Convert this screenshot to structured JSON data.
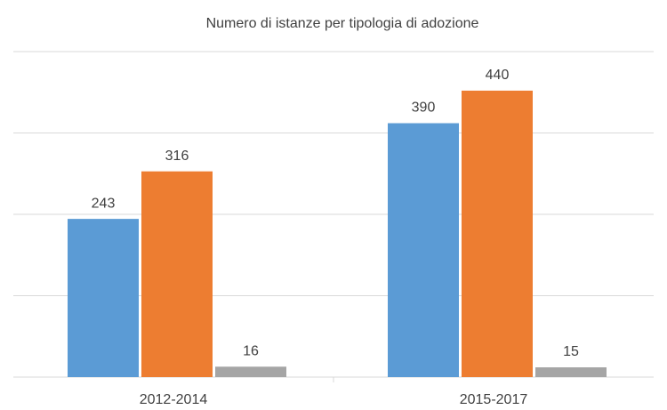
{
  "chart_data": {
    "type": "bar",
    "title": "Numero di istanze per tipologia di adozione",
    "categories": [
      "2012-2014",
      "2015-2017"
    ],
    "series": [
      {
        "color": "#5b9bd5",
        "values": [
          243,
          390
        ]
      },
      {
        "color": "#ed7d31",
        "values": [
          316,
          440
        ]
      },
      {
        "color": "#a5a5a5",
        "values": [
          16,
          15
        ]
      }
    ],
    "ylim": [
      0,
      500
    ],
    "yticks": [
      0,
      125,
      250,
      375,
      500
    ],
    "grid": true
  }
}
